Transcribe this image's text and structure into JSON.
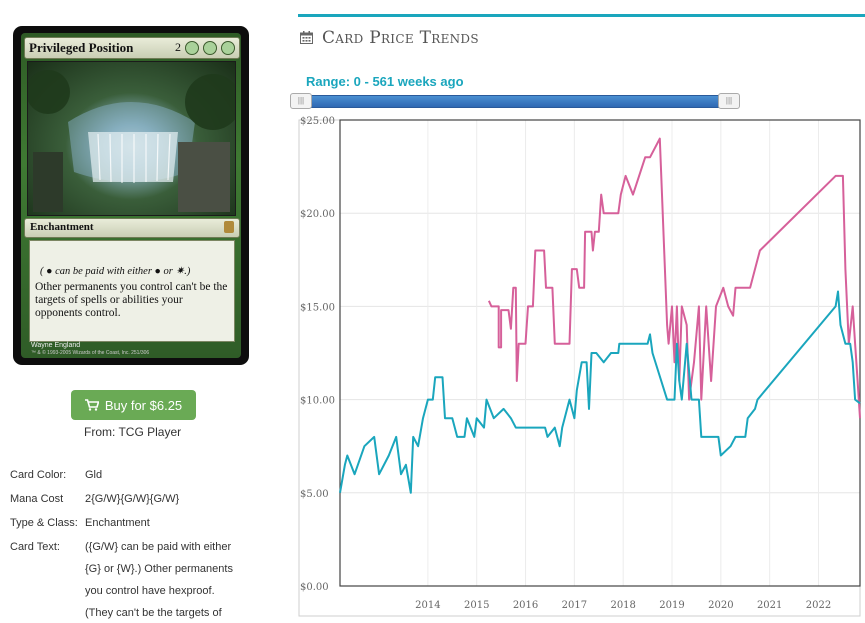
{
  "card": {
    "name": "Privileged Position",
    "mana_prefix": "2",
    "type_line": "Enchantment",
    "reminder_text": "( ● can be paid with either ● or ✷.)",
    "rules_text": "Other permanents you control can't be the targets of spells or abilities your opponents control.",
    "artist": "Wayne England",
    "copyright": "™ & © 1993-2005 Wizards of the Coast, Inc. 251/306"
  },
  "buy_button": {
    "label": "Buy for $6.25",
    "icon": "cart-icon",
    "color": "#6aaa55"
  },
  "from_text": "From: TCG Player",
  "attributes": [
    {
      "label": "Card Color:",
      "value": "Gld"
    },
    {
      "label": "Mana Cost",
      "value": "2{G/W}{G/W}{G/W}"
    },
    {
      "label": "Type & Class:",
      "value": "Enchantment"
    }
  ],
  "card_text_label": "Card Text:",
  "card_text_lines": [
    "({G/W} can be paid with either",
    "{G} or {W}.) Other permanents",
    "you control have hexproof.",
    "(They can't be the targets of"
  ],
  "section": {
    "title": "Card Price Trends",
    "icon": "calendar-icon",
    "accent": "#1aa6bd"
  },
  "range": {
    "label": "Range: 0 - 561 weeks ago",
    "min_weeks": 0,
    "max_weeks": 561
  },
  "chart_data": {
    "type": "line",
    "title": "",
    "xlabel": "",
    "ylabel": "",
    "ylim": [
      0,
      25
    ],
    "xlim": [
      2012.2,
      2022.85
    ],
    "y_ticks": [
      "$0.00",
      "$5.00",
      "$10.00",
      "$15.00",
      "$20.00",
      "$25.00"
    ],
    "y_tick_values": [
      0,
      5,
      10,
      15,
      20,
      25
    ],
    "x_ticks": [
      "2014",
      "2015",
      "2016",
      "2017",
      "2018",
      "2019",
      "2020",
      "2021",
      "2022"
    ],
    "x_tick_values": [
      2014,
      2015,
      2016,
      2017,
      2018,
      2019,
      2020,
      2021,
      2022
    ],
    "grid": true,
    "series": [
      {
        "color": "#d6609a",
        "points": [
          [
            2015.25,
            15.3
          ],
          [
            2015.3,
            15.0
          ],
          [
            2015.45,
            15.0
          ],
          [
            2015.45,
            12.8
          ],
          [
            2015.5,
            12.8
          ],
          [
            2015.5,
            14.8
          ],
          [
            2015.65,
            14.8
          ],
          [
            2015.7,
            13.8
          ],
          [
            2015.75,
            16.0
          ],
          [
            2015.8,
            16.0
          ],
          [
            2015.82,
            11.0
          ],
          [
            2015.86,
            13.0
          ],
          [
            2016.0,
            13.0
          ],
          [
            2016.05,
            15.0
          ],
          [
            2016.15,
            15.0
          ],
          [
            2016.2,
            18.0
          ],
          [
            2016.38,
            18.0
          ],
          [
            2016.42,
            16.0
          ],
          [
            2016.55,
            16.0
          ],
          [
            2016.6,
            13.0
          ],
          [
            2016.9,
            13.0
          ],
          [
            2016.95,
            17.0
          ],
          [
            2017.05,
            17.0
          ],
          [
            2017.1,
            16.0
          ],
          [
            2017.2,
            16.0
          ],
          [
            2017.22,
            19.0
          ],
          [
            2017.35,
            19.0
          ],
          [
            2017.38,
            18.0
          ],
          [
            2017.42,
            19.0
          ],
          [
            2017.5,
            19.0
          ],
          [
            2017.55,
            21.0
          ],
          [
            2017.6,
            20.0
          ],
          [
            2017.9,
            20.0
          ],
          [
            2017.95,
            21.0
          ],
          [
            2018.05,
            22.0
          ],
          [
            2018.2,
            21.0
          ],
          [
            2018.45,
            23.0
          ],
          [
            2018.55,
            23.0
          ],
          [
            2018.75,
            24.0
          ],
          [
            2018.9,
            14.0
          ],
          [
            2018.93,
            13.0
          ],
          [
            2019.0,
            15.0
          ],
          [
            2019.05,
            12.0
          ],
          [
            2019.1,
            15.0
          ],
          [
            2019.15,
            11.0
          ],
          [
            2019.2,
            15.0
          ],
          [
            2019.3,
            14.0
          ],
          [
            2019.35,
            10.0
          ],
          [
            2019.45,
            12.0
          ],
          [
            2019.55,
            15.0
          ],
          [
            2019.6,
            10.0
          ],
          [
            2019.7,
            15.0
          ],
          [
            2019.8,
            11.0
          ],
          [
            2019.9,
            15.0
          ],
          [
            2020.05,
            16.0
          ],
          [
            2020.15,
            15.0
          ],
          [
            2020.25,
            14.5
          ],
          [
            2020.3,
            16.0
          ],
          [
            2020.6,
            16.0
          ],
          [
            2020.8,
            18.0
          ],
          [
            2022.35,
            22.0
          ],
          [
            2022.5,
            22.0
          ],
          [
            2022.55,
            17.0
          ],
          [
            2022.62,
            13.0
          ],
          [
            2022.7,
            15.0
          ],
          [
            2022.75,
            13.0
          ],
          [
            2022.8,
            11.0
          ],
          [
            2022.85,
            9.0
          ]
        ]
      },
      {
        "color": "#1aa6bd",
        "points": [
          [
            2012.2,
            5.0
          ],
          [
            2012.3,
            6.5
          ],
          [
            2012.35,
            7.0
          ],
          [
            2012.5,
            6.0
          ],
          [
            2012.7,
            7.5
          ],
          [
            2012.9,
            8.0
          ],
          [
            2013.0,
            6.0
          ],
          [
            2013.2,
            7.0
          ],
          [
            2013.35,
            8.0
          ],
          [
            2013.45,
            6.0
          ],
          [
            2013.55,
            6.5
          ],
          [
            2013.65,
            5.0
          ],
          [
            2013.7,
            8.0
          ],
          [
            2013.8,
            7.5
          ],
          [
            2013.9,
            9.0
          ],
          [
            2014.0,
            10.0
          ],
          [
            2014.1,
            10.0
          ],
          [
            2014.15,
            11.2
          ],
          [
            2014.3,
            11.2
          ],
          [
            2014.35,
            9.0
          ],
          [
            2014.5,
            9.0
          ],
          [
            2014.6,
            8.0
          ],
          [
            2014.75,
            8.0
          ],
          [
            2014.8,
            9.0
          ],
          [
            2014.95,
            8.0
          ],
          [
            2015.0,
            9.0
          ],
          [
            2015.15,
            8.5
          ],
          [
            2015.2,
            10.0
          ],
          [
            2015.35,
            9.0
          ],
          [
            2015.55,
            9.5
          ],
          [
            2015.7,
            9.0
          ],
          [
            2015.8,
            8.5
          ],
          [
            2016.4,
            8.5
          ],
          [
            2016.45,
            8.0
          ],
          [
            2016.6,
            8.5
          ],
          [
            2016.7,
            7.5
          ],
          [
            2016.75,
            8.5
          ],
          [
            2016.9,
            10.0
          ],
          [
            2017.0,
            9.0
          ],
          [
            2017.05,
            10.5
          ],
          [
            2017.15,
            12.0
          ],
          [
            2017.25,
            12.0
          ],
          [
            2017.3,
            9.5
          ],
          [
            2017.35,
            12.5
          ],
          [
            2017.45,
            12.5
          ],
          [
            2017.6,
            12.0
          ],
          [
            2017.75,
            12.5
          ],
          [
            2017.9,
            12.5
          ],
          [
            2017.92,
            13.0
          ],
          [
            2018.5,
            13.0
          ],
          [
            2018.55,
            13.5
          ],
          [
            2018.6,
            12.5
          ],
          [
            2018.9,
            10.0
          ],
          [
            2019.05,
            10.0
          ],
          [
            2019.1,
            13.0
          ],
          [
            2019.15,
            11.0
          ],
          [
            2019.2,
            10.0
          ],
          [
            2019.3,
            13.0
          ],
          [
            2019.4,
            10.0
          ],
          [
            2019.55,
            10.0
          ],
          [
            2019.6,
            8.0
          ],
          [
            2019.95,
            8.0
          ],
          [
            2020.0,
            7.0
          ],
          [
            2020.2,
            7.5
          ],
          [
            2020.3,
            8.0
          ],
          [
            2020.5,
            8.0
          ],
          [
            2020.55,
            9.0
          ],
          [
            2020.7,
            9.5
          ],
          [
            2020.75,
            10.0
          ],
          [
            2022.35,
            15.0
          ],
          [
            2022.4,
            15.8
          ],
          [
            2022.45,
            14.0
          ],
          [
            2022.55,
            13.0
          ],
          [
            2022.65,
            13.0
          ],
          [
            2022.7,
            12.0
          ],
          [
            2022.75,
            10.0
          ],
          [
            2022.85,
            9.8
          ]
        ]
      }
    ]
  }
}
